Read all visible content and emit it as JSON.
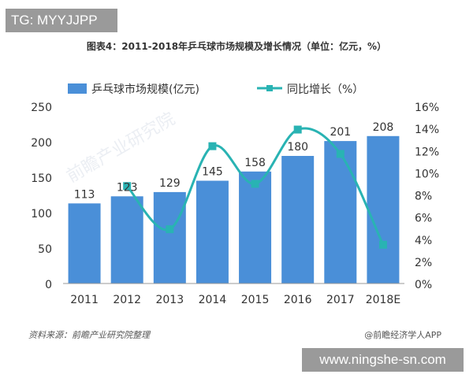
{
  "badge": {
    "text": "TG: MYYJJPP"
  },
  "footer": {
    "source": "资料来源：前瞻产业研究院整理",
    "brand": "@前瞻经济学人APP",
    "site_watermark": "www.ningshe-sn.com"
  },
  "chart_data": {
    "type": "bar",
    "title": "图表4：2011-2018年乒乓球市场规模及增长情况（单位：亿元，%）",
    "categories": [
      "2011",
      "2012",
      "2013",
      "2014",
      "2015",
      "2016",
      "2017",
      "2018E"
    ],
    "series": [
      {
        "name": "乒乓球市场规模(亿元)",
        "type": "bar",
        "axis": "left",
        "values": [
          113,
          123,
          129,
          145,
          158,
          180,
          201,
          208
        ],
        "color": "#4a8fd8"
      },
      {
        "name": "同比增长（%）",
        "type": "line",
        "axis": "right",
        "values": [
          null,
          8.8,
          4.9,
          12.4,
          9.0,
          13.9,
          11.7,
          3.5
        ],
        "color": "#29b3b3"
      }
    ],
    "y_left": {
      "ylim": [
        0,
        250
      ],
      "ticks": [
        "0",
        "50",
        "100",
        "150",
        "200",
        "250"
      ]
    },
    "y_right": {
      "ylim": [
        0,
        16
      ],
      "ticks": [
        "0%",
        "2%",
        "4%",
        "6%",
        "8%",
        "10%",
        "12%",
        "14%",
        "16%"
      ]
    },
    "legend_position": "top",
    "grid": false,
    "chart_watermark": "前瞻产业研究院"
  }
}
